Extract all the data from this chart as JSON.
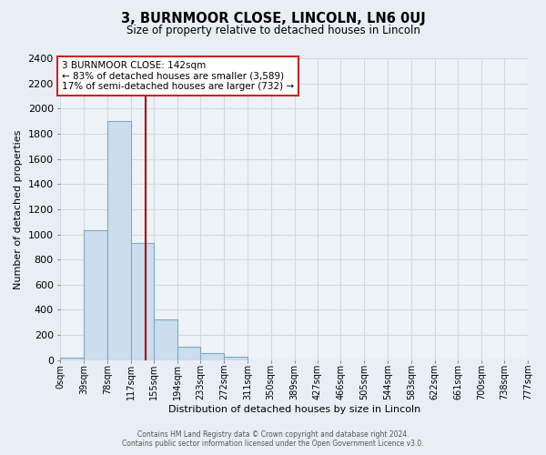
{
  "title": "3, BURNMOOR CLOSE, LINCOLN, LN6 0UJ",
  "subtitle": "Size of property relative to detached houses in Lincoln",
  "xlabel": "Distribution of detached houses by size in Lincoln",
  "ylabel": "Number of detached properties",
  "bin_labels": [
    "0sqm",
    "39sqm",
    "78sqm",
    "117sqm",
    "155sqm",
    "194sqm",
    "233sqm",
    "272sqm",
    "311sqm",
    "350sqm",
    "389sqm",
    "427sqm",
    "466sqm",
    "505sqm",
    "544sqm",
    "583sqm",
    "622sqm",
    "661sqm",
    "700sqm",
    "738sqm",
    "777sqm"
  ],
  "bin_edges": [
    0,
    39,
    78,
    117,
    155,
    194,
    233,
    272,
    311,
    350,
    389,
    427,
    466,
    505,
    544,
    583,
    622,
    661,
    700,
    738,
    777
  ],
  "bin_values": [
    20,
    1030,
    1900,
    930,
    325,
    110,
    55,
    30,
    0,
    0,
    0,
    0,
    0,
    0,
    0,
    0,
    0,
    0,
    0,
    0
  ],
  "bar_color": "#ccdded",
  "bar_edge_color": "#7aaac8",
  "vline_x": 142,
  "vline_color": "#aa0000",
  "ylim": [
    0,
    2400
  ],
  "yticks": [
    0,
    200,
    400,
    600,
    800,
    1000,
    1200,
    1400,
    1600,
    1800,
    2000,
    2200,
    2400
  ],
  "annotation_title": "3 BURNMOOR CLOSE: 142sqm",
  "annotation_line1": "← 83% of detached houses are smaller (3,589)",
  "annotation_line2": "17% of semi-detached houses are larger (732) →",
  "annotation_box_color": "#ffffff",
  "annotation_box_edge": "#cc2222",
  "footer_line1": "Contains HM Land Registry data © Crown copyright and database right 2024.",
  "footer_line2": "Contains public sector information licensed under the Open Government Licence v3.0.",
  "bg_color": "#e8eef4",
  "plot_bg_color": "#eef3f8",
  "grid_color": "#d0dae4"
}
